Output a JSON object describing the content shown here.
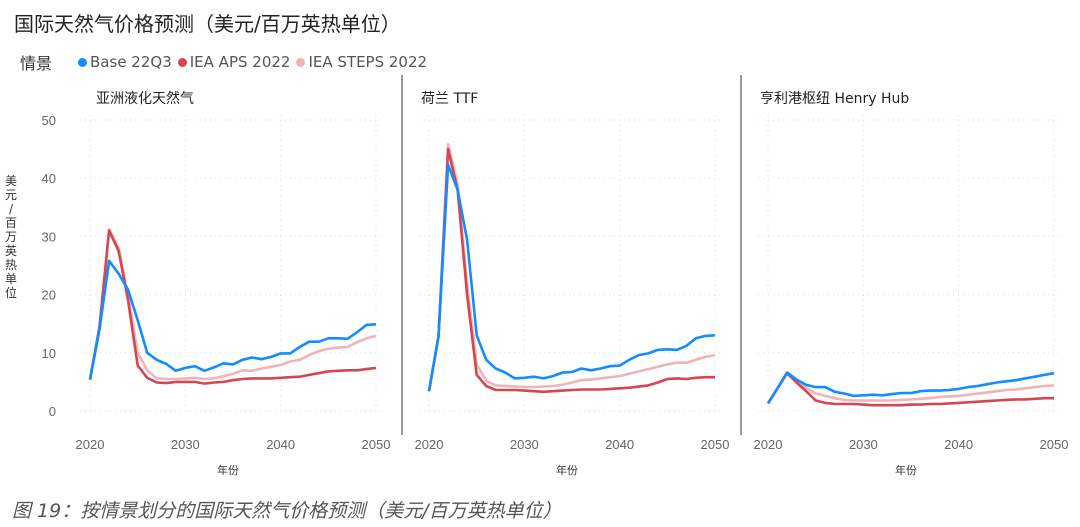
{
  "title": "国际天然气价格预测（美元/百万英热单位）",
  "caption": "图 19：按情景划分的国际天然气价格预测（美元/百万英热单位）",
  "chart_data": {
    "type": "line",
    "legend_title": "情景",
    "legend_position": "top-left",
    "ylabel": "美元/百万英热单位",
    "xlabel": "年份",
    "ylim": [
      0,
      50
    ],
    "yticks": [
      0,
      10,
      20,
      30,
      40,
      50
    ],
    "xticks": [
      2020,
      2030,
      2040,
      2050
    ],
    "grid": true,
    "x": [
      2020,
      2021,
      2022,
      2023,
      2024,
      2025,
      2026,
      2027,
      2028,
      2029,
      2030,
      2031,
      2032,
      2033,
      2034,
      2035,
      2036,
      2037,
      2038,
      2039,
      2040,
      2041,
      2042,
      2043,
      2044,
      2045,
      2046,
      2047,
      2048,
      2049,
      2050
    ],
    "series_meta": [
      {
        "name": "Base 22Q3",
        "color": "#118DFF"
      },
      {
        "name": "IEA APS 2022",
        "color": "#D64550"
      },
      {
        "name": "IEA STEPS 2022",
        "color": "#F0B4B8"
      }
    ],
    "panels": [
      {
        "title": "亚洲液化天然气",
        "series": [
          {
            "name": "Base 22Q3",
            "values": [
              5.4,
              14,
              25.8,
              23.6,
              20.8,
              15.6,
              10,
              8.8,
              8.1,
              6.9,
              7.4,
              7.7,
              6.9,
              7.5,
              8.2,
              8.0,
              8.8,
              9.2,
              8.9,
              9.3,
              9.9,
              9.9,
              11,
              11.9,
              11.9,
              12.5,
              12.5,
              12.4,
              13.5,
              14.8,
              14.9
            ]
          },
          {
            "name": "IEA APS 2022",
            "values": [
              5.4,
              14.5,
              31,
              27.5,
              19,
              7.8,
              5.7,
              4.9,
              4.8,
              5.0,
              5.0,
              5.0,
              4.7,
              4.9,
              5.0,
              5.3,
              5.5,
              5.6,
              5.6,
              5.6,
              5.7,
              5.8,
              5.9,
              6.2,
              6.5,
              6.8,
              6.9,
              7.0,
              7.0,
              7.2,
              7.4
            ]
          },
          {
            "name": "IEA STEPS 2022",
            "values": [
              5.4,
              14,
              31.2,
              28,
              20,
              10,
              7,
              5.6,
              5.5,
              5.5,
              5.6,
              5.7,
              5.5,
              5.6,
              6.0,
              6.4,
              7.0,
              6.9,
              7.3,
              7.6,
              7.9,
              8.5,
              8.8,
              9.6,
              10.3,
              10.7,
              10.9,
              11.0,
              11.8,
              12.5,
              12.9
            ]
          }
        ]
      },
      {
        "title": "荷兰 TTF",
        "series": [
          {
            "name": "Base 22Q3",
            "values": [
              3.4,
              12.8,
              42.3,
              38,
              29.4,
              13,
              8.8,
              7.3,
              6.6,
              5.6,
              5.7,
              5.9,
              5.6,
              6.0,
              6.6,
              6.7,
              7.3,
              7.0,
              7.3,
              7.7,
              7.8,
              8.8,
              9.6,
              9.9,
              10.5,
              10.6,
              10.5,
              11.2,
              12.5,
              12.9,
              13
            ]
          },
          {
            "name": "IEA APS 2022",
            "values": [
              3.4,
              12.8,
              45,
              38,
              20,
              6.2,
              4.3,
              3.6,
              3.6,
              3.6,
              3.5,
              3.4,
              3.3,
              3.4,
              3.5,
              3.6,
              3.7,
              3.7,
              3.7,
              3.8,
              3.9,
              4.0,
              4.2,
              4.4,
              4.9,
              5.5,
              5.6,
              5.5,
              5.7,
              5.8,
              5.8
            ]
          },
          {
            "name": "IEA STEPS 2022",
            "values": [
              3.4,
              12.8,
              45.8,
              39,
              22,
              8,
              5.2,
              4.4,
              4.3,
              4.2,
              4.1,
              4.1,
              4.2,
              4.3,
              4.5,
              4.9,
              5.3,
              5.4,
              5.6,
              5.8,
              6.0,
              6.4,
              6.8,
              7.2,
              7.6,
              8.0,
              8.3,
              8.3,
              8.8,
              9.3,
              9.6
            ]
          }
        ]
      },
      {
        "title": "亨利港枢纽 Henry Hub",
        "series": [
          {
            "name": "Base 22Q3",
            "values": [
              1.3,
              3.9,
              6.6,
              5.4,
              4.5,
              4.1,
              4.1,
              3.3,
              3.0,
              2.6,
              2.7,
              2.8,
              2.7,
              2.9,
              3.1,
              3.1,
              3.4,
              3.5,
              3.5,
              3.6,
              3.8,
              4.1,
              4.3,
              4.6,
              4.9,
              5.1,
              5.3,
              5.6,
              5.9,
              6.2,
              6.5
            ]
          },
          {
            "name": "IEA APS 2022",
            "values": [
              1.3,
              3.9,
              6.5,
              4.9,
              3.4,
              1.8,
              1.4,
              1.2,
              1.2,
              1.2,
              1.1,
              1.0,
              1.0,
              1.0,
              1.0,
              1.1,
              1.1,
              1.2,
              1.2,
              1.3,
              1.4,
              1.5,
              1.6,
              1.7,
              1.8,
              1.9,
              2.0,
              2.0,
              2.1,
              2.2,
              2.2
            ]
          },
          {
            "name": "IEA STEPS 2022",
            "values": [
              1.3,
              3.9,
              6.6,
              5.2,
              4.0,
              3.0,
              2.6,
              2.2,
              1.9,
              1.8,
              1.8,
              1.8,
              1.8,
              1.8,
              1.9,
              2.0,
              2.1,
              2.2,
              2.4,
              2.5,
              2.6,
              2.8,
              3.0,
              3.2,
              3.4,
              3.6,
              3.7,
              3.9,
              4.1,
              4.3,
              4.4
            ]
          }
        ]
      }
    ]
  }
}
